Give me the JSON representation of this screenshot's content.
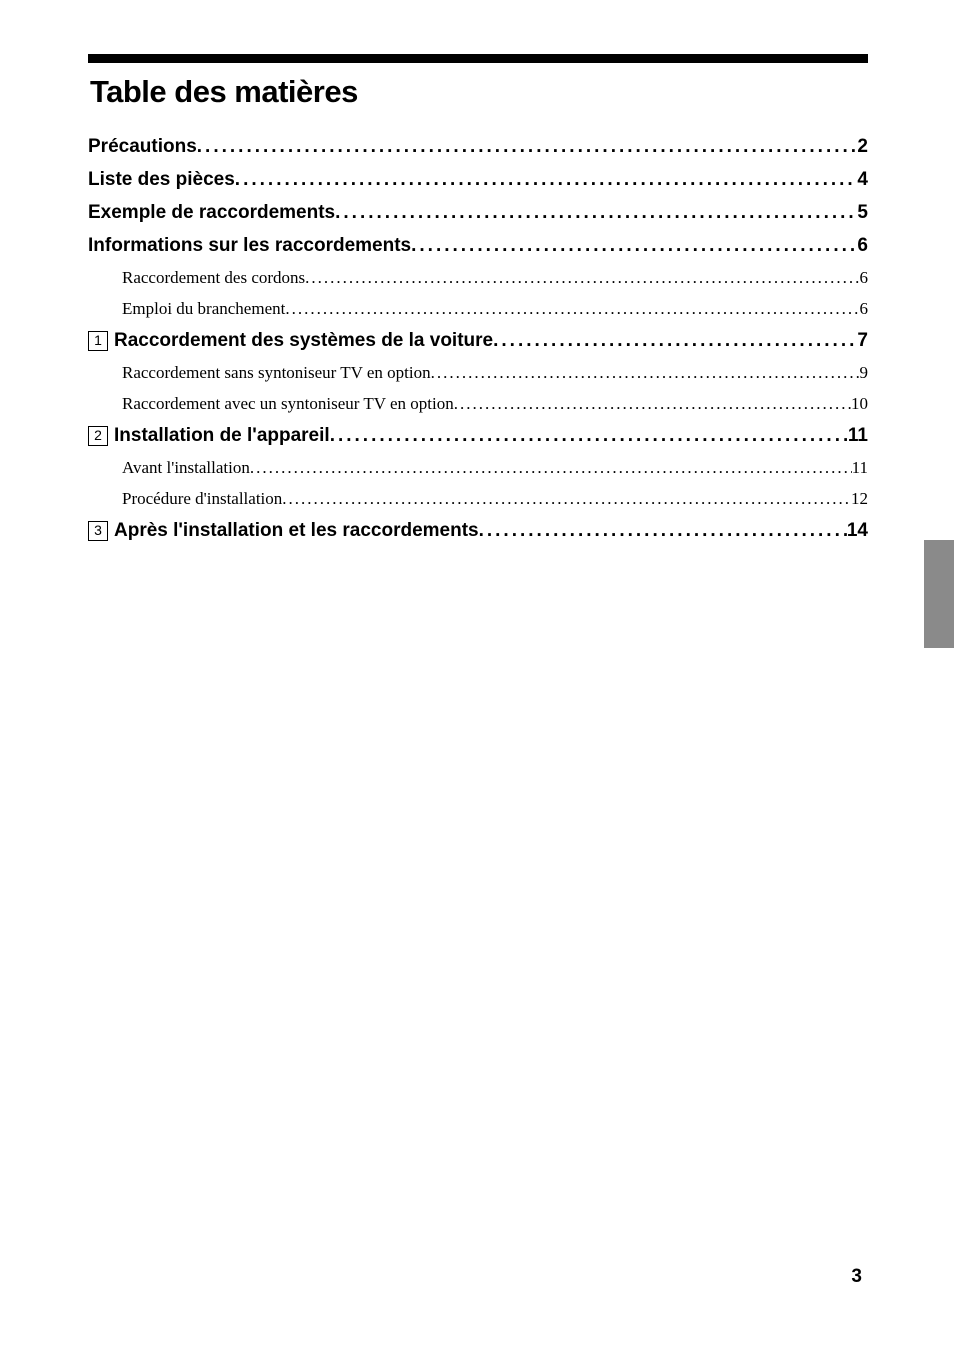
{
  "title": "Table des matières",
  "rows": [
    {
      "kind": "bold",
      "box": null,
      "label": "Précautions",
      "page": "2"
    },
    {
      "kind": "bold",
      "box": null,
      "label": "Liste des pièces",
      "page": "4"
    },
    {
      "kind": "bold",
      "box": null,
      "label": "Exemple de raccordements",
      "page": "5"
    },
    {
      "kind": "bold",
      "box": null,
      "label": "Informations sur les raccordements",
      "page": "6"
    },
    {
      "kind": "sub",
      "box": null,
      "label": "Raccordement des cordons",
      "page": "6"
    },
    {
      "kind": "sub",
      "box": null,
      "label": "Emploi du branchement",
      "page": "6"
    },
    {
      "kind": "bold",
      "box": "1",
      "label": "Raccordement des systèmes de la voiture",
      "page": "7"
    },
    {
      "kind": "sub",
      "box": null,
      "label": "Raccordement sans syntoniseur TV en option",
      "page": "9"
    },
    {
      "kind": "sub",
      "box": null,
      "label": "Raccordement avec un syntoniseur TV en option",
      "page": "10"
    },
    {
      "kind": "bold",
      "box": "2",
      "label": "Installation de l'appareil",
      "page": "11"
    },
    {
      "kind": "sub",
      "box": null,
      "label": "Avant l'installation",
      "page": "11"
    },
    {
      "kind": "sub",
      "box": null,
      "label": "Procédure d'installation",
      "page": "12"
    },
    {
      "kind": "bold",
      "box": "3",
      "label": "Après l'installation et les raccordements",
      "page": "14"
    }
  ],
  "footerPage": "3",
  "leaderDots": "......................................................................................................................................................................................................."
}
